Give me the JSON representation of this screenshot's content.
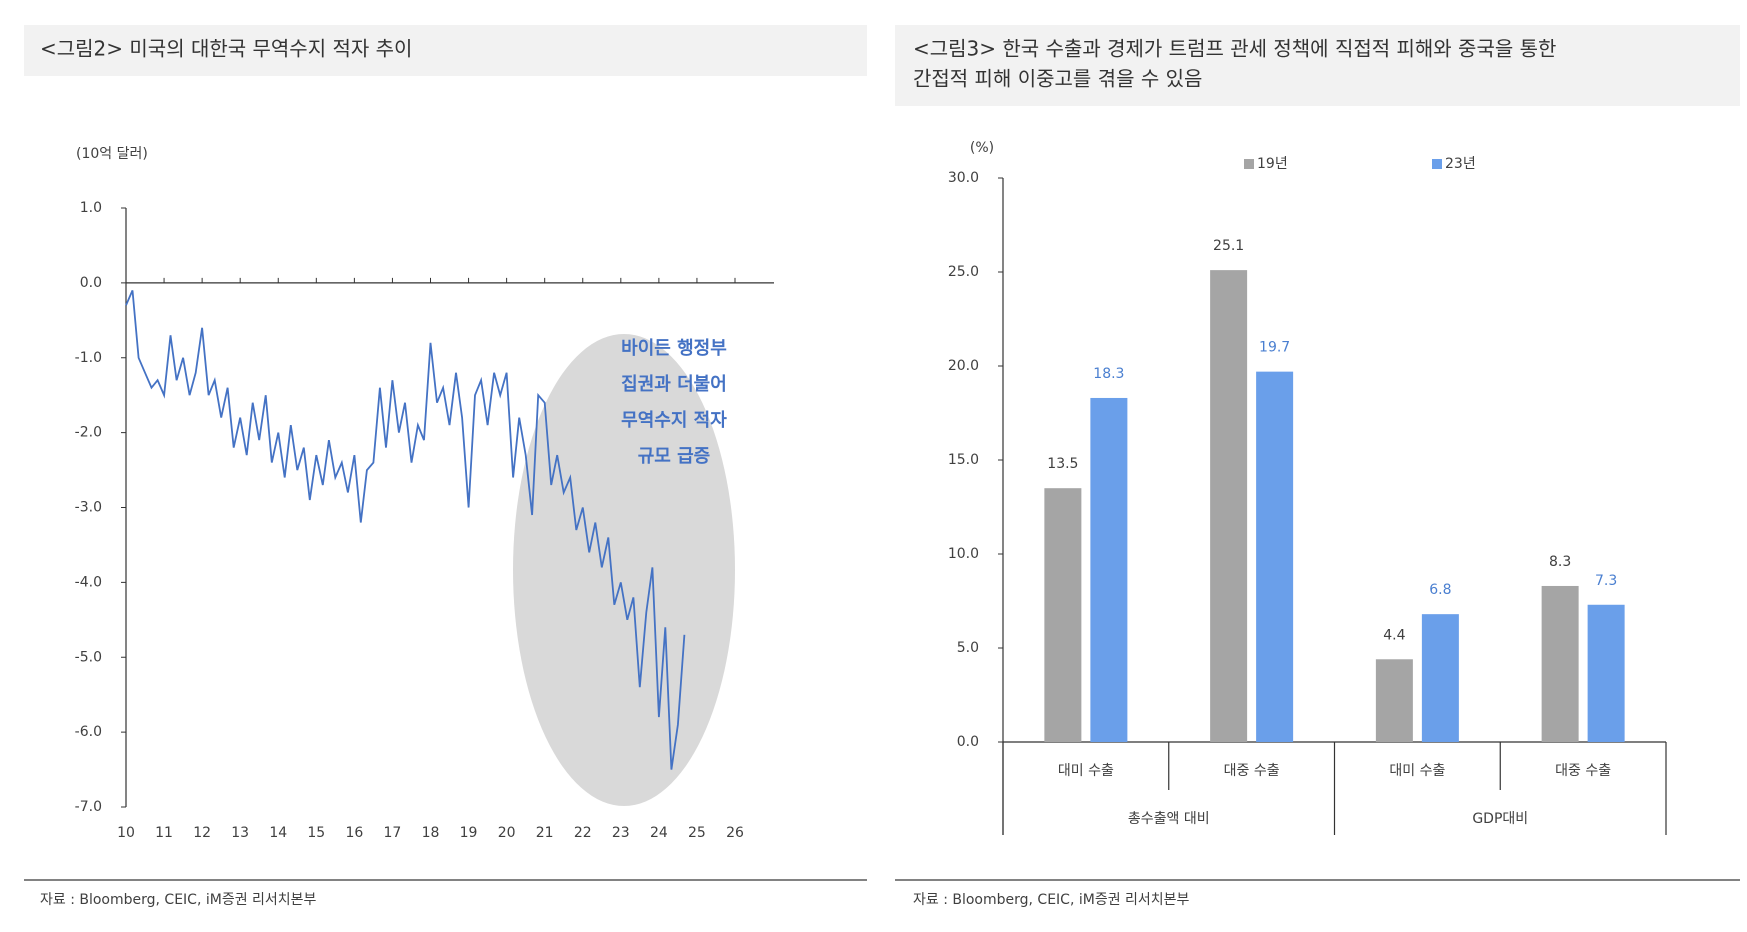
{
  "chart_data": [
    {
      "type": "line",
      "title": "<그림2> 미국의 대한국 무역수지 적자 추이",
      "unit_label": "(10억 달러)",
      "color": "#4472c4",
      "x": [
        10,
        10.17,
        10.33,
        10.5,
        10.67,
        10.83,
        11,
        11.17,
        11.33,
        11.5,
        11.67,
        11.83,
        12,
        12.17,
        12.33,
        12.5,
        12.67,
        12.83,
        13,
        13.17,
        13.33,
        13.5,
        13.67,
        13.83,
        14,
        14.17,
        14.33,
        14.5,
        14.67,
        14.83,
        15,
        15.17,
        15.33,
        15.5,
        15.67,
        15.83,
        16,
        16.17,
        16.33,
        16.5,
        16.67,
        16.83,
        17,
        17.17,
        17.33,
        17.5,
        17.67,
        17.83,
        18,
        18.17,
        18.33,
        18.5,
        18.67,
        18.83,
        19,
        19.17,
        19.33,
        19.5,
        19.67,
        19.83,
        20,
        20.17,
        20.33,
        20.5,
        20.67,
        20.83,
        21,
        21.17,
        21.33,
        21.5,
        21.67,
        21.83,
        22,
        22.17,
        22.33,
        22.5,
        22.67,
        22.83,
        23,
        23.17,
        23.33,
        23.5,
        23.67,
        23.83,
        24,
        24.17,
        24.33,
        24.5,
        24.67
      ],
      "values": [
        -0.3,
        -0.1,
        -1.0,
        -1.2,
        -1.4,
        -1.3,
        -1.5,
        -0.7,
        -1.3,
        -1.0,
        -1.5,
        -1.2,
        -0.6,
        -1.5,
        -1.3,
        -1.8,
        -1.4,
        -2.2,
        -1.8,
        -2.3,
        -1.6,
        -2.1,
        -1.5,
        -2.4,
        -2.0,
        -2.6,
        -1.9,
        -2.5,
        -2.2,
        -2.9,
        -2.3,
        -2.7,
        -2.1,
        -2.6,
        -2.4,
        -2.8,
        -2.3,
        -3.2,
        -2.5,
        -2.4,
        -1.4,
        -2.2,
        -1.3,
        -2.0,
        -1.6,
        -2.4,
        -1.9,
        -2.1,
        -0.8,
        -1.6,
        -1.4,
        -1.9,
        -1.2,
        -1.8,
        -3.0,
        -1.5,
        -1.3,
        -1.9,
        -1.2,
        -1.5,
        -1.2,
        -2.6,
        -1.8,
        -2.3,
        -3.1,
        -1.5,
        -1.6,
        -2.7,
        -2.3,
        -2.8,
        -2.6,
        -3.3,
        -3.0,
        -3.6,
        -3.2,
        -3.8,
        -3.4,
        -4.3,
        -4.0,
        -4.5,
        -4.2,
        -5.4,
        -4.4,
        -3.8,
        -5.8,
        -4.6,
        -6.5,
        -5.9,
        -4.7
      ],
      "xlim": [
        10,
        26
      ],
      "xticks": [
        10,
        11,
        12,
        13,
        14,
        15,
        16,
        17,
        18,
        19,
        20,
        21,
        22,
        23,
        24,
        25,
        26
      ],
      "ylim": [
        -7,
        1
      ],
      "yticks": [
        {
          "value": 1,
          "label": "1.0"
        },
        {
          "value": 0,
          "label": "0.0"
        },
        {
          "value": -1,
          "label": "-1.0"
        },
        {
          "value": -2,
          "label": "-2.0"
        },
        {
          "value": -3,
          "label": "-3.0"
        },
        {
          "value": -4,
          "label": "-4.0"
        },
        {
          "value": -5,
          "label": "-5.0"
        },
        {
          "value": -6,
          "label": "-6.0"
        },
        {
          "value": -7,
          "label": "-7.0"
        }
      ],
      "annotation": [
        "바이든 행정부",
        "집권과 더불어",
        "무역수지 적자",
        "규모 급증"
      ],
      "source": "자료 : Bloomberg, CEIC, iM증권 리서치본부"
    },
    {
      "type": "bar",
      "title": [
        "<그림3> 한국 수출과 경제가 트럼프 관세 정책에 직접적 피해와 중국을 통한",
        "간접적 피해 이중고를 겪을 수 있음"
      ],
      "unit_label": "(%)",
      "categories": [
        "대미 수출",
        "대중 수출",
        "대미 수출",
        "대중 수출"
      ],
      "groups": [
        "총수출액 대비",
        "GDP대비"
      ],
      "series": [
        {
          "name": "19년",
          "color": "#a5a5a5",
          "values": [
            13.5,
            25.1,
            4.4,
            8.3
          ]
        },
        {
          "name": "23년",
          "color": "#6a9fea",
          "values": [
            18.3,
            19.7,
            6.8,
            7.3
          ]
        }
      ],
      "ylim": [
        0,
        30
      ],
      "yticks": [
        {
          "value": 0,
          "label": "0.0"
        },
        {
          "value": 5,
          "label": "5.0"
        },
        {
          "value": 10,
          "label": "10.0"
        },
        {
          "value": 15,
          "label": "15.0"
        },
        {
          "value": 20,
          "label": "20.0"
        },
        {
          "value": 25,
          "label": "25.0"
        },
        {
          "value": 30,
          "label": "30.0"
        }
      ],
      "source": "자료 : Bloomberg, CEIC, iM증권 리서치본부"
    }
  ]
}
